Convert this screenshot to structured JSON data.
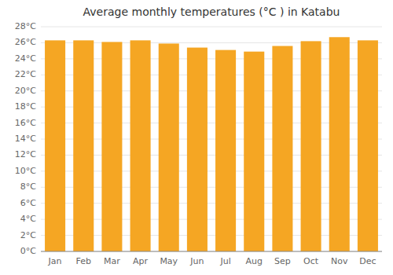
{
  "chart_data": {
    "type": "bar",
    "title": "Average monthly temperatures (°C ) in Katabu",
    "categories": [
      "Jan",
      "Feb",
      "Mar",
      "Apr",
      "May",
      "Jun",
      "Jul",
      "Aug",
      "Sep",
      "Oct",
      "Nov",
      "Dec"
    ],
    "values": [
      26.3,
      26.3,
      26.1,
      26.3,
      25.9,
      25.4,
      25.1,
      24.9,
      25.6,
      26.2,
      26.7,
      26.3
    ],
    "color": "#F5A623",
    "ylim": [
      0,
      28
    ],
    "yticks": [
      {
        "value": 0,
        "label": "0°C"
      },
      {
        "value": 2,
        "label": "2°C"
      },
      {
        "value": 4,
        "label": "4°C"
      },
      {
        "value": 6,
        "label": "6°C"
      },
      {
        "value": 8,
        "label": "8°C"
      },
      {
        "value": 10,
        "label": "10°C"
      },
      {
        "value": 12,
        "label": "12°C"
      },
      {
        "value": 14,
        "label": "14°C"
      },
      {
        "value": 16,
        "label": "16°C"
      },
      {
        "value": 18,
        "label": "18°C"
      },
      {
        "value": 20,
        "label": "20°C"
      },
      {
        "value": 22,
        "label": "22°C"
      },
      {
        "value": 24,
        "label": "24°C"
      },
      {
        "value": 26,
        "label": "26°C"
      },
      {
        "value": 28,
        "label": "28°C"
      }
    ],
    "grid": true
  }
}
